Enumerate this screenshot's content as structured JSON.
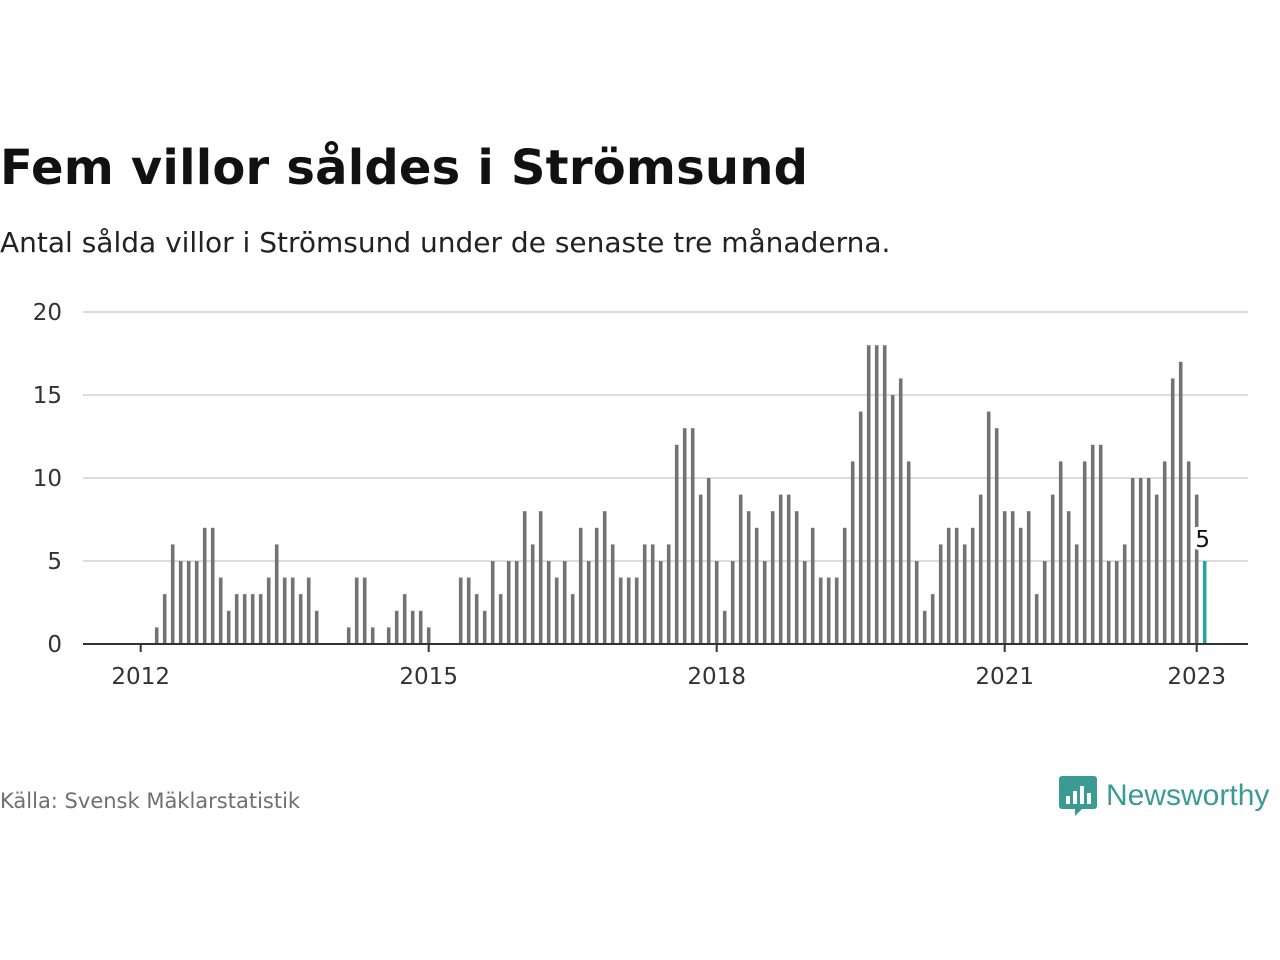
{
  "header": {
    "title": "Fem villor såldes i Strömsund",
    "subtitle": "Antal sålda villor i Strömsund under de senaste tre månaderna."
  },
  "footer": {
    "source": "Källa: Svensk Mäklarstatistik",
    "brand": "Newsworthy",
    "brand_icon": "bar-chart-speech-icon"
  },
  "colors": {
    "bar": "#737373",
    "highlight": "#26a69a",
    "grid": "#dddddd",
    "axis": "#333333",
    "brand": "#3a9a94"
  },
  "chart_data": {
    "type": "bar",
    "title": "Fem villor såldes i Strömsund",
    "subtitle": "Antal sålda villor i Strömsund under de senaste tre månaderna.",
    "x_start": "2012-01",
    "x_tick_labels": [
      "2012",
      "2015",
      "2018",
      "2021",
      "2023"
    ],
    "y_ticks": [
      0,
      5,
      10,
      15,
      20
    ],
    "ylim": [
      0,
      20
    ],
    "grid": true,
    "highlight_last": true,
    "last_value_label": "5",
    "values": [
      0,
      0,
      1,
      3,
      6,
      5,
      5,
      5,
      7,
      7,
      4,
      2,
      3,
      3,
      3,
      3,
      4,
      6,
      4,
      4,
      3,
      4,
      2,
      0,
      0,
      0,
      1,
      4,
      4,
      1,
      0,
      1,
      2,
      3,
      2,
      2,
      1,
      0,
      0,
      0,
      4,
      4,
      3,
      2,
      5,
      3,
      5,
      5,
      8,
      6,
      8,
      5,
      4,
      5,
      3,
      7,
      5,
      7,
      8,
      6,
      4,
      4,
      4,
      6,
      6,
      5,
      6,
      12,
      13,
      13,
      9,
      10,
      5,
      2,
      5,
      9,
      8,
      7,
      5,
      8,
      9,
      9,
      8,
      5,
      7,
      4,
      4,
      4,
      7,
      11,
      14,
      18,
      18,
      18,
      15,
      16,
      11,
      5,
      2,
      3,
      6,
      7,
      7,
      6,
      7,
      9,
      14,
      13,
      8,
      8,
      7,
      8,
      3,
      5,
      9,
      11,
      8,
      6,
      11,
      12,
      12,
      5,
      5,
      6,
      10,
      10,
      10,
      9,
      11,
      16,
      17,
      11,
      9,
      5
    ]
  }
}
